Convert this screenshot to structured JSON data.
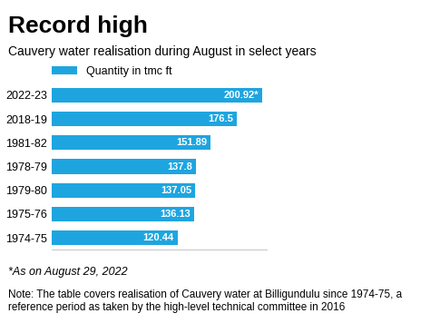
{
  "chart_data": {
    "type": "bar",
    "orientation": "horizontal",
    "title": "Record high",
    "subtitle": "Cauvery water realisation during August in select years",
    "categories": [
      "2022-23",
      "2018-19",
      "1981-82",
      "1978-79",
      "1979-80",
      "1975-76",
      "1974-75"
    ],
    "series": [
      {
        "name": "Quantity in tmc ft",
        "color": "#1ea5e0",
        "values": [
          200.92,
          176.5,
          151.89,
          137.8,
          137.05,
          136.13,
          120.44
        ],
        "value_labels": [
          "200.92*",
          "176.5",
          "151.89",
          "137.8",
          "137.05",
          "136.13",
          "120.44"
        ]
      }
    ],
    "xlim": [
      0,
      205
    ],
    "xticks": [],
    "data_labels": true,
    "tick_labels": "y",
    "legend": "upper left",
    "grid": false,
    "notes": [
      "*As on August 29, 2022",
      "Note: The table covers realisation of Cauvery water at Billigundulu since 1974-75, a reference period as taken by the high-level technical committee in 2016"
    ]
  }
}
